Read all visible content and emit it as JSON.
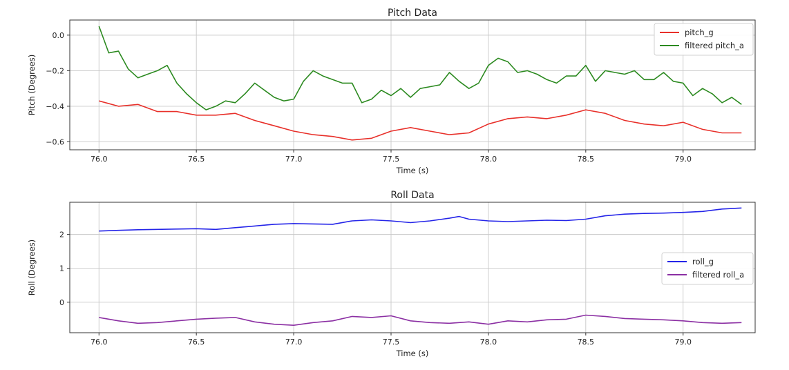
{
  "chart_data": [
    {
      "type": "line",
      "title": "Pitch Data",
      "xlabel": "Time (s)",
      "ylabel": "Pitch (Degrees)",
      "xlim": [
        75.85,
        79.37
      ],
      "ylim": [
        -0.645,
        0.085
      ],
      "xticks": [
        76.0,
        76.5,
        77.0,
        77.5,
        78.0,
        78.5,
        79.0
      ],
      "xtick_labels": [
        "76.0",
        "76.5",
        "77.0",
        "77.5",
        "78.0",
        "78.5",
        "79.0"
      ],
      "yticks": [
        0.0,
        -0.2,
        -0.4,
        -0.6
      ],
      "ytick_labels": [
        "0.0",
        "−0.2",
        "−0.4",
        "−0.6"
      ],
      "grid": true,
      "legend_position": "top-right",
      "series": [
        {
          "name": "pitch_g",
          "color": "#e8302a",
          "x": [
            76.0,
            76.1,
            76.2,
            76.3,
            76.4,
            76.5,
            76.6,
            76.7,
            76.8,
            76.9,
            77.0,
            77.1,
            77.2,
            77.3,
            77.4,
            77.5,
            77.6,
            77.7,
            77.8,
            77.9,
            78.0,
            78.1,
            78.2,
            78.3,
            78.4,
            78.5,
            78.6,
            78.7,
            78.8,
            78.9,
            79.0,
            79.1,
            79.2,
            79.3
          ],
          "values": [
            -0.37,
            -0.4,
            -0.39,
            -0.43,
            -0.43,
            -0.45,
            -0.45,
            -0.44,
            -0.48,
            -0.51,
            -0.54,
            -0.56,
            -0.57,
            -0.59,
            -0.58,
            -0.54,
            -0.52,
            -0.54,
            -0.56,
            -0.55,
            -0.5,
            -0.47,
            -0.46,
            -0.47,
            -0.45,
            -0.42,
            -0.44,
            -0.48,
            -0.5,
            -0.51,
            -0.49,
            -0.53,
            -0.55,
            -0.55
          ]
        },
        {
          "name": "filtered pitch_a",
          "color": "#2c8a20",
          "x": [
            76.0,
            76.05,
            76.1,
            76.15,
            76.2,
            76.25,
            76.3,
            76.35,
            76.4,
            76.45,
            76.5,
            76.55,
            76.6,
            76.65,
            76.7,
            76.75,
            76.8,
            76.85,
            76.9,
            76.95,
            77.0,
            77.05,
            77.1,
            77.15,
            77.2,
            77.25,
            77.3,
            77.35,
            77.4,
            77.45,
            77.5,
            77.55,
            77.6,
            77.65,
            77.7,
            77.75,
            77.8,
            77.85,
            77.9,
            77.95,
            78.0,
            78.05,
            78.1,
            78.15,
            78.2,
            78.25,
            78.3,
            78.35,
            78.4,
            78.45,
            78.5,
            78.55,
            78.6,
            78.65,
            78.7,
            78.75,
            78.8,
            78.85,
            78.9,
            78.95,
            79.0,
            79.05,
            79.1,
            79.15,
            79.2,
            79.25,
            79.3
          ],
          "values": [
            0.05,
            -0.1,
            -0.09,
            -0.19,
            -0.24,
            -0.22,
            -0.2,
            -0.17,
            -0.27,
            -0.33,
            -0.38,
            -0.42,
            -0.4,
            -0.37,
            -0.38,
            -0.33,
            -0.27,
            -0.31,
            -0.35,
            -0.37,
            -0.36,
            -0.26,
            -0.2,
            -0.23,
            -0.25,
            -0.27,
            -0.27,
            -0.38,
            -0.36,
            -0.31,
            -0.34,
            -0.3,
            -0.35,
            -0.3,
            -0.29,
            -0.28,
            -0.21,
            -0.26,
            -0.3,
            -0.27,
            -0.17,
            -0.13,
            -0.15,
            -0.21,
            -0.2,
            -0.22,
            -0.25,
            -0.27,
            -0.23,
            -0.23,
            -0.17,
            -0.26,
            -0.2,
            -0.21,
            -0.22,
            -0.2,
            -0.25,
            -0.25,
            -0.21,
            -0.26,
            -0.27,
            -0.34,
            -0.3,
            -0.33,
            -0.38,
            -0.35,
            -0.39
          ]
        }
      ]
    },
    {
      "type": "line",
      "title": "Roll Data",
      "xlabel": "Time (s)",
      "ylabel": "Roll (Degrees)",
      "xlim": [
        75.85,
        79.37
      ],
      "ylim": [
        -0.9,
        2.95
      ],
      "xticks": [
        76.0,
        76.5,
        77.0,
        77.5,
        78.0,
        78.5,
        79.0
      ],
      "xtick_labels": [
        "76.0",
        "76.5",
        "77.0",
        "77.5",
        "78.0",
        "78.5",
        "79.0"
      ],
      "yticks": [
        2,
        1,
        0
      ],
      "ytick_labels": [
        "2",
        "1",
        "0"
      ],
      "grid": true,
      "legend_position": "center-right",
      "series": [
        {
          "name": "roll_g",
          "color": "#2424e8",
          "x": [
            76.0,
            76.1,
            76.2,
            76.3,
            76.4,
            76.5,
            76.6,
            76.7,
            76.8,
            76.9,
            77.0,
            77.1,
            77.2,
            77.3,
            77.4,
            77.5,
            77.6,
            77.7,
            77.8,
            77.85,
            77.9,
            78.0,
            78.1,
            78.2,
            78.3,
            78.4,
            78.5,
            78.6,
            78.7,
            78.8,
            78.9,
            79.0,
            79.1,
            79.2,
            79.3
          ],
          "values": [
            2.1,
            2.12,
            2.14,
            2.15,
            2.16,
            2.17,
            2.15,
            2.2,
            2.25,
            2.3,
            2.32,
            2.31,
            2.3,
            2.4,
            2.43,
            2.4,
            2.35,
            2.4,
            2.48,
            2.53,
            2.45,
            2.4,
            2.38,
            2.4,
            2.42,
            2.41,
            2.45,
            2.55,
            2.6,
            2.62,
            2.63,
            2.65,
            2.68,
            2.75,
            2.78
          ]
        },
        {
          "name": "filtered roll_a",
          "color": "#8b2fa3",
          "x": [
            76.0,
            76.1,
            76.2,
            76.3,
            76.4,
            76.5,
            76.6,
            76.7,
            76.8,
            76.9,
            77.0,
            77.1,
            77.2,
            77.3,
            77.4,
            77.5,
            77.6,
            77.7,
            77.8,
            77.9,
            78.0,
            78.1,
            78.2,
            78.3,
            78.4,
            78.5,
            78.6,
            78.7,
            78.8,
            78.9,
            79.0,
            79.1,
            79.2,
            79.3
          ],
          "values": [
            -0.45,
            -0.55,
            -0.62,
            -0.6,
            -0.55,
            -0.5,
            -0.47,
            -0.45,
            -0.58,
            -0.65,
            -0.68,
            -0.6,
            -0.55,
            -0.42,
            -0.45,
            -0.4,
            -0.55,
            -0.6,
            -0.62,
            -0.58,
            -0.65,
            -0.55,
            -0.58,
            -0.52,
            -0.5,
            -0.38,
            -0.42,
            -0.48,
            -0.5,
            -0.52,
            -0.55,
            -0.6,
            -0.62,
            -0.6
          ]
        }
      ]
    }
  ]
}
